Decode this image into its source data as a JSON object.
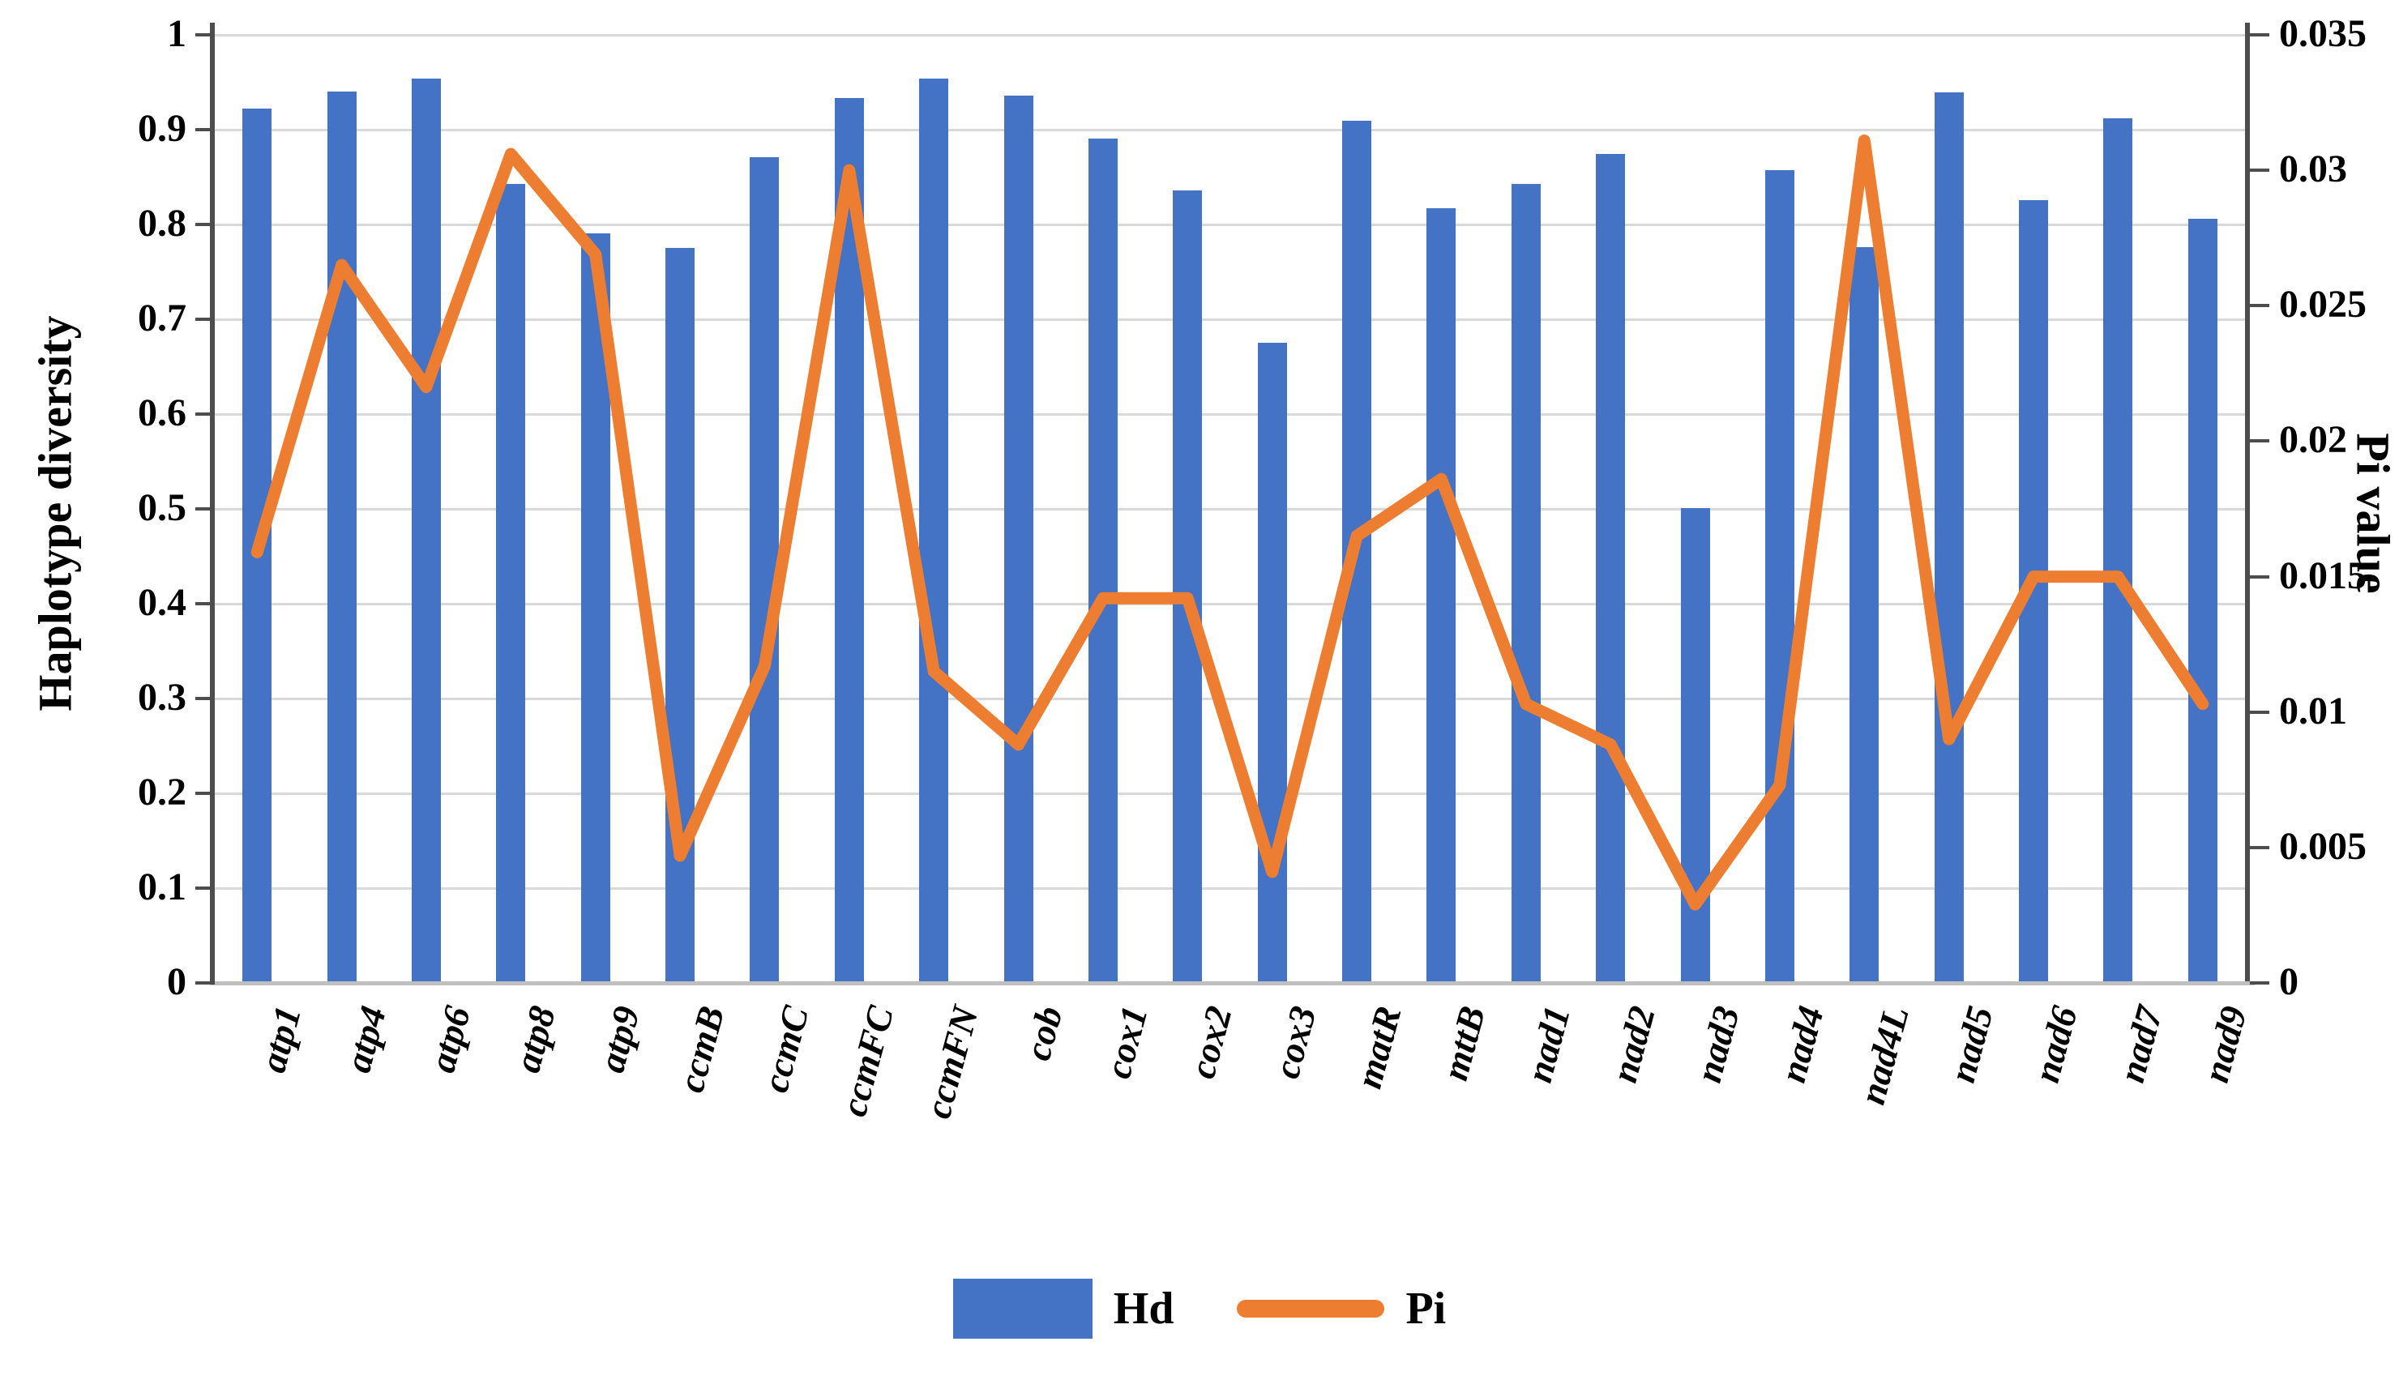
{
  "chart_data": {
    "type": "bar+line",
    "categories": [
      "atp1",
      "atp4",
      "atp6",
      "atp8",
      "atp9",
      "ccmB",
      "ccmC",
      "ccmFC",
      "ccmFN",
      "cob",
      "cox1",
      "cox2",
      "cox3",
      "matR",
      "mttB",
      "nad1",
      "nad2",
      "nad3",
      "nad4",
      "nad4L",
      "nad5",
      "nad6",
      "nad7",
      "nad9"
    ],
    "series": [
      {
        "name": "Hd",
        "type": "bar",
        "axis": "left",
        "color": "#4472C4",
        "values": [
          0.922,
          0.94,
          0.954,
          0.843,
          0.791,
          0.775,
          0.871,
          0.933,
          0.954,
          0.936,
          0.891,
          0.836,
          0.675,
          0.909,
          0.817,
          0.843,
          0.874,
          0.501,
          0.857,
          0.776,
          0.939,
          0.826,
          0.912,
          0.806
        ]
      },
      {
        "name": "Pi",
        "type": "line",
        "axis": "right",
        "color": "#ED7D31",
        "values": [
          0.0159,
          0.0265,
          0.022,
          0.0306,
          0.0269,
          0.0047,
          0.0117,
          0.03,
          0.0115,
          0.0088,
          0.0142,
          0.0142,
          0.0041,
          0.0165,
          0.0186,
          0.0103,
          0.0088,
          0.0029,
          0.0073,
          0.0311,
          0.009,
          0.015,
          0.015,
          0.0103
        ]
      }
    ],
    "ylabel_left": "Haplotype diversity",
    "ylabel_right": "Pi value",
    "ylim_left": [
      0,
      1
    ],
    "ylim_right": [
      0,
      0.035
    ],
    "grid": true,
    "legend_position": "bottom"
  },
  "axes": {
    "left": {
      "title": "Haplotype diversity",
      "tick_labels": [
        "1",
        "0.9",
        "0.8",
        "0.7",
        "0.6",
        "0.5",
        "0.4",
        "0.3",
        "0.2",
        "0.1",
        "0"
      ],
      "tick_values": [
        1,
        0.9,
        0.8,
        0.7,
        0.6,
        0.5,
        0.4,
        0.3,
        0.2,
        0.1,
        0
      ]
    },
    "right": {
      "title": "Pi value",
      "tick_labels": [
        "0.035",
        "0.03",
        "0.025",
        "0.02",
        "0.015",
        "0.01",
        "0.005",
        "0"
      ],
      "tick_values": [
        0.035,
        0.03,
        0.025,
        0.02,
        0.015,
        0.01,
        0.005,
        0
      ]
    }
  },
  "legend": {
    "items": [
      {
        "label": "Hd",
        "marker": "bar",
        "color": "#4472C4"
      },
      {
        "label": "Pi",
        "marker": "line",
        "color": "#ED7D31"
      }
    ]
  },
  "colors": {
    "bar": "#4472C4",
    "line": "#ED7D31",
    "gridline": "#d9d9d9",
    "axis": "#4d4d4d",
    "baseline": "#bfbfbf",
    "text": "#000000",
    "background": "#ffffff"
  }
}
